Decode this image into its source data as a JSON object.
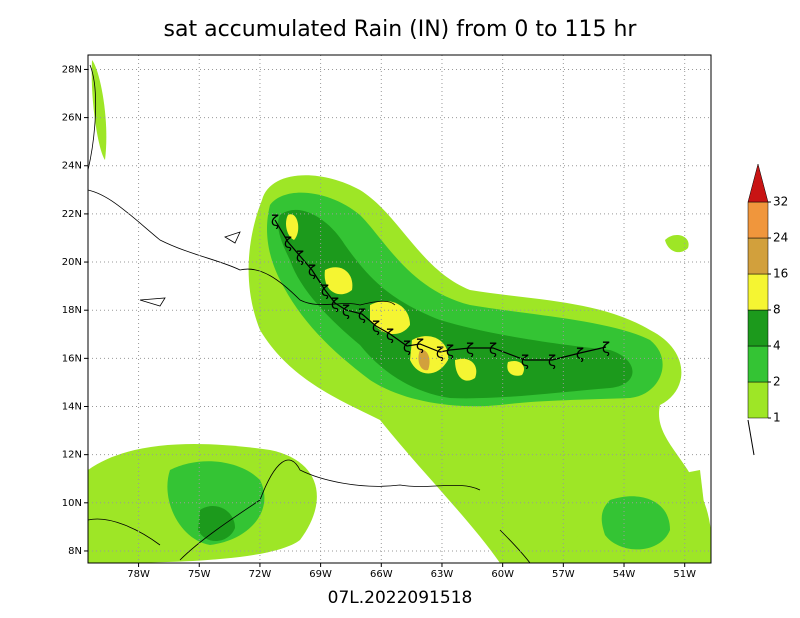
{
  "chart_data": {
    "type": "map",
    "title": "sat accumulated Rain (IN) from 0 to 115 hr",
    "subtitle": "07L.2022091518",
    "xlim": [
      -80.5,
      -49.7
    ],
    "ylim": [
      7.5,
      28.6
    ],
    "xticks": [
      {
        "value": -78,
        "label": "78W"
      },
      {
        "value": -75,
        "label": "75W"
      },
      {
        "value": -72,
        "label": "72W"
      },
      {
        "value": -69,
        "label": "69W"
      },
      {
        "value": -66,
        "label": "66W"
      },
      {
        "value": -63,
        "label": "63W"
      },
      {
        "value": -60,
        "label": "60W"
      },
      {
        "value": -57,
        "label": "57W"
      },
      {
        "value": -54,
        "label": "54W"
      },
      {
        "value": -51,
        "label": "51W"
      }
    ],
    "yticks": [
      {
        "value": 8,
        "label": "8N"
      },
      {
        "value": 10,
        "label": "10N"
      },
      {
        "value": 12,
        "label": "12N"
      },
      {
        "value": 14,
        "label": "14N"
      },
      {
        "value": 16,
        "label": "16N"
      },
      {
        "value": 18,
        "label": "18N"
      },
      {
        "value": 20,
        "label": "20N"
      },
      {
        "value": 22,
        "label": "22N"
      },
      {
        "value": 24,
        "label": "24N"
      },
      {
        "value": 26,
        "label": "26N"
      },
      {
        "value": 28,
        "label": "28N"
      }
    ],
    "grid": true,
    "colorbar": {
      "levels": [
        1,
        2,
        4,
        8,
        16,
        24,
        32
      ],
      "colors": [
        "#9ee626",
        "#34c434",
        "#1c9a1c",
        "#f5f532",
        "#d2a03c",
        "#f0963c",
        "#c81414"
      ]
    }
  }
}
